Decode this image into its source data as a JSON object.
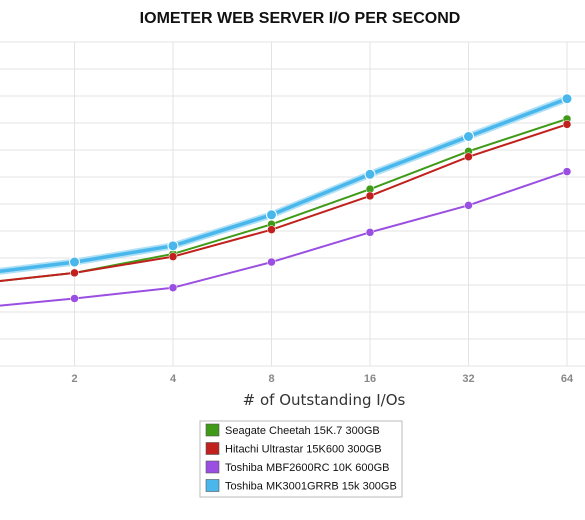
{
  "chart_data": {
    "type": "line",
    "title": "IOMETER WEB SERVER I/O PER SECOND",
    "xlabel": "# of Outstanding I/Os",
    "ylabel": "",
    "x_scale": "log2",
    "x_ticks": [
      2,
      4,
      8,
      16,
      32,
      64
    ],
    "x": [
      1,
      2,
      4,
      8,
      16,
      32,
      64
    ],
    "ylim": [
      0,
      12
    ],
    "grid": true,
    "legend_position": "bottom-center",
    "series": [
      {
        "name": "Seagate Cheetah 15K.7 300GB",
        "color": "#3f9a17",
        "values": [
          3.05,
          3.45,
          4.15,
          5.25,
          6.55,
          7.95,
          9.15
        ]
      },
      {
        "name": "Hitachi Ultrastar 15K600 300GB",
        "color": "#c0211c",
        "values": [
          3.05,
          3.45,
          4.05,
          5.05,
          6.3,
          7.75,
          8.95
        ]
      },
      {
        "name": "Toshiba MBF2600RC 10K 600GB",
        "color": "#9a4fe2",
        "values": [
          2.15,
          2.5,
          2.9,
          3.85,
          4.95,
          5.95,
          7.2
        ]
      },
      {
        "name": "Toshiba MK3001GRRB 15k 300GB",
        "color": "#49b7ec",
        "values": [
          3.4,
          3.85,
          4.45,
          5.6,
          7.1,
          8.5,
          9.9
        ]
      }
    ]
  }
}
